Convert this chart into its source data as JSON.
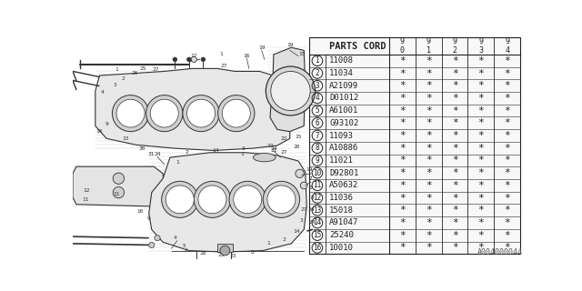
{
  "doc_number": "A004000044",
  "parts_header": "PARTS CORD",
  "year_cols": [
    "9\n0",
    "9\n1",
    "9\n2",
    "9\n3",
    "9\n4"
  ],
  "parts": [
    {
      "num": 1,
      "code": "11008"
    },
    {
      "num": 2,
      "code": "11034"
    },
    {
      "num": 3,
      "code": "A21099"
    },
    {
      "num": 4,
      "code": "D01012"
    },
    {
      "num": 5,
      "code": "A61001"
    },
    {
      "num": 6,
      "code": "G93102"
    },
    {
      "num": 7,
      "code": "11093"
    },
    {
      "num": 8,
      "code": "A10886"
    },
    {
      "num": 9,
      "code": "11021"
    },
    {
      "num": 10,
      "code": "D92801"
    },
    {
      "num": 11,
      "code": "A50632"
    },
    {
      "num": 12,
      "code": "11036"
    },
    {
      "num": 13,
      "code": "15018"
    },
    {
      "num": 14,
      "code": "A91047"
    },
    {
      "num": 15,
      "code": "25240"
    },
    {
      "num": 16,
      "code": "10010"
    }
  ],
  "star_symbol": "*",
  "bg_color": "#ffffff",
  "line_color": "#222222",
  "drawing_color": "#333333"
}
